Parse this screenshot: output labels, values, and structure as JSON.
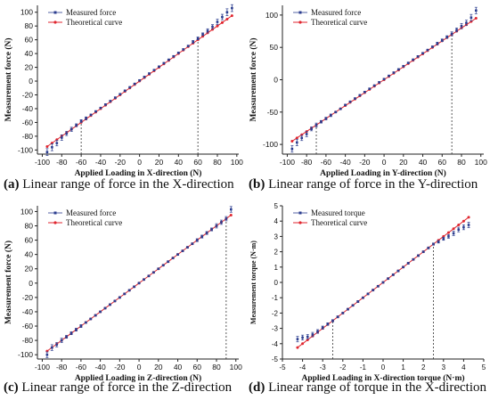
{
  "colors": {
    "measured": "#2b3d8f",
    "theory": "#e0262f",
    "axis": "#222222",
    "guide": "#333333"
  },
  "chart_data": [
    {
      "type": "scatter",
      "panel_label": "(a)",
      "caption": "Linear range of force in the X-direction",
      "xlabel": "Applied Loading in X-direction (N)",
      "ylabel": "Measurement force (N)",
      "xlim": [
        -105,
        102
      ],
      "ylim": [
        -106,
        110
      ],
      "xticks": [
        -100,
        -80,
        -60,
        -40,
        -20,
        0,
        20,
        40,
        60,
        80,
        100
      ],
      "yticks": [
        -100,
        -80,
        -60,
        -40,
        -20,
        0,
        20,
        40,
        60,
        80,
        100
      ],
      "legend_position": "top-left",
      "guides": [
        -60,
        60
      ],
      "series": [
        {
          "name": "Measured force",
          "marker": "square",
          "x": [
            -95,
            -90,
            -85,
            -80,
            -75,
            -70,
            -65,
            -60,
            -55,
            -50,
            -45,
            -40,
            -35,
            -30,
            -25,
            -20,
            -15,
            -10,
            -5,
            0,
            5,
            10,
            15,
            20,
            25,
            30,
            35,
            40,
            45,
            50,
            55,
            60,
            65,
            70,
            75,
            80,
            85,
            90,
            95
          ],
          "y": [
            -103,
            -96,
            -90,
            -82,
            -76,
            -70,
            -64,
            -58,
            -54,
            -49,
            -44,
            -39,
            -34,
            -29,
            -24,
            -19,
            -14,
            -9,
            -4,
            1,
            6,
            11,
            16,
            21,
            26,
            31,
            36,
            41,
            46,
            51,
            57,
            62,
            68,
            73,
            79,
            86,
            93,
            100,
            106
          ],
          "err": [
            5,
            5,
            4,
            4,
            3,
            3,
            2,
            2,
            2,
            1,
            1,
            1,
            1,
            1,
            1,
            1,
            1,
            1,
            1,
            1,
            1,
            1,
            1,
            1,
            1,
            1,
            1,
            1,
            1,
            1,
            2,
            2,
            2,
            3,
            3,
            4,
            4,
            5,
            5
          ]
        },
        {
          "name": "Theoretical curve",
          "marker": "circle",
          "x": [
            -95,
            -90,
            -85,
            -80,
            -75,
            -70,
            -65,
            -60,
            -55,
            -50,
            -45,
            -40,
            -35,
            -30,
            -25,
            -20,
            -15,
            -10,
            -5,
            0,
            5,
            10,
            15,
            20,
            25,
            30,
            35,
            40,
            45,
            50,
            55,
            60,
            65,
            70,
            75,
            80,
            85,
            90,
            95
          ],
          "y": [
            -95,
            -90,
            -85,
            -80,
            -75,
            -70,
            -65,
            -60,
            -55,
            -50,
            -45,
            -40,
            -35,
            -30,
            -25,
            -20,
            -15,
            -10,
            -5,
            0,
            5,
            10,
            15,
            20,
            25,
            30,
            35,
            40,
            45,
            50,
            55,
            60,
            65,
            70,
            75,
            80,
            85,
            90,
            95
          ]
        }
      ]
    },
    {
      "type": "scatter",
      "panel_label": "(b)",
      "caption": "Linear range of force in the Y-direction",
      "xlabel": "Applied Loading in Y-direction (N)",
      "ylabel": "Measurement force (N)",
      "xlim": [
        -105,
        103
      ],
      "ylim": [
        -115,
        115
      ],
      "xticks": [
        -100,
        -80,
        -60,
        -40,
        -20,
        0,
        20,
        40,
        60,
        80,
        100
      ],
      "yticks": [
        -100,
        -50,
        0,
        50,
        100
      ],
      "legend_position": "top-left",
      "guides": [
        -70,
        70
      ],
      "series": [
        {
          "name": "Measured force",
          "marker": "square",
          "x": [
            -95,
            -90,
            -85,
            -80,
            -75,
            -70,
            -65,
            -60,
            -55,
            -50,
            -45,
            -40,
            -35,
            -30,
            -25,
            -20,
            -15,
            -10,
            -5,
            0,
            5,
            10,
            15,
            20,
            25,
            30,
            35,
            40,
            45,
            50,
            55,
            60,
            65,
            70,
            75,
            80,
            85,
            90,
            95
          ],
          "y": [
            -107,
            -97,
            -90,
            -84,
            -76,
            -70,
            -65,
            -60,
            -55,
            -50,
            -45,
            -39,
            -34,
            -29,
            -24,
            -19,
            -14,
            -9,
            -4,
            1,
            6,
            11,
            16,
            21,
            26,
            31,
            36,
            41,
            46,
            51,
            56,
            61,
            66,
            71,
            77,
            83,
            88,
            96,
            107
          ],
          "err": [
            5,
            5,
            4,
            4,
            3,
            3,
            2,
            2,
            2,
            1,
            1,
            1,
            1,
            1,
            1,
            1,
            1,
            1,
            1,
            1,
            1,
            1,
            1,
            1,
            1,
            1,
            1,
            1,
            1,
            1,
            2,
            2,
            2,
            3,
            3,
            4,
            4,
            5,
            5
          ]
        },
        {
          "name": "Theoretical curve",
          "marker": "circle",
          "x": [
            -95,
            -90,
            -85,
            -80,
            -75,
            -70,
            -65,
            -60,
            -55,
            -50,
            -45,
            -40,
            -35,
            -30,
            -25,
            -20,
            -15,
            -10,
            -5,
            0,
            5,
            10,
            15,
            20,
            25,
            30,
            35,
            40,
            45,
            50,
            55,
            60,
            65,
            70,
            75,
            80,
            85,
            90,
            95
          ],
          "y": [
            -95,
            -90,
            -85,
            -80,
            -75,
            -70,
            -65,
            -60,
            -55,
            -50,
            -45,
            -40,
            -35,
            -30,
            -25,
            -20,
            -15,
            -10,
            -5,
            0,
            5,
            10,
            15,
            20,
            25,
            30,
            35,
            40,
            45,
            50,
            55,
            60,
            65,
            70,
            75,
            80,
            85,
            90,
            95
          ]
        }
      ]
    },
    {
      "type": "scatter",
      "panel_label": "(c)",
      "caption": "Linear range of force in the Z-direction",
      "xlabel": "Applied Loading in Z-direction (N)",
      "ylabel": "Measurement force (N)",
      "xlim": [
        -105,
        103
      ],
      "ylim": [
        -106,
        108
      ],
      "xticks": [
        -100,
        -80,
        -60,
        -40,
        -20,
        0,
        20,
        40,
        60,
        80,
        100
      ],
      "yticks": [
        -100,
        -80,
        -60,
        -40,
        -20,
        0,
        20,
        40,
        60,
        80,
        100
      ],
      "legend_position": "top-left",
      "guides": [
        90
      ],
      "series": [
        {
          "name": "Measured force",
          "marker": "square",
          "x": [
            -95,
            -90,
            -85,
            -80,
            -75,
            -70,
            -65,
            -60,
            -55,
            -50,
            -45,
            -40,
            -35,
            -30,
            -25,
            -20,
            -15,
            -10,
            -5,
            0,
            5,
            10,
            15,
            20,
            25,
            30,
            35,
            40,
            45,
            50,
            55,
            60,
            65,
            70,
            75,
            80,
            85,
            90,
            95
          ],
          "y": [
            -100,
            -90,
            -86,
            -80,
            -75,
            -70,
            -65,
            -60,
            -55,
            -50,
            -45,
            -40,
            -35,
            -30,
            -25,
            -20,
            -15,
            -10,
            -5,
            0,
            5,
            10,
            15,
            20,
            25,
            30,
            35,
            40,
            45,
            50,
            55,
            60,
            65,
            70,
            75,
            80,
            85,
            90,
            103
          ],
          "err": [
            4,
            4,
            3,
            3,
            2,
            2,
            2,
            2,
            1,
            1,
            1,
            1,
            1,
            1,
            1,
            1,
            1,
            1,
            1,
            1,
            1,
            1,
            1,
            1,
            1,
            1,
            1,
            1,
            1,
            1,
            1,
            2,
            2,
            2,
            2,
            3,
            3,
            3,
            4
          ]
        },
        {
          "name": "Theoretical curve",
          "marker": "circle",
          "x": [
            -95,
            -90,
            -85,
            -80,
            -75,
            -70,
            -65,
            -60,
            -55,
            -50,
            -45,
            -40,
            -35,
            -30,
            -25,
            -20,
            -15,
            -10,
            -5,
            0,
            5,
            10,
            15,
            20,
            25,
            30,
            35,
            40,
            45,
            50,
            55,
            60,
            65,
            70,
            75,
            80,
            85,
            90,
            95
          ],
          "y": [
            -95,
            -90,
            -85,
            -80,
            -75,
            -70,
            -65,
            -60,
            -55,
            -50,
            -45,
            -40,
            -35,
            -30,
            -25,
            -20,
            -15,
            -10,
            -5,
            0,
            5,
            10,
            15,
            20,
            25,
            30,
            35,
            40,
            45,
            50,
            55,
            60,
            65,
            70,
            75,
            80,
            85,
            90,
            95
          ]
        }
      ]
    },
    {
      "type": "scatter",
      "panel_label": "(d)",
      "caption": "Linear range of torque in the X-direction",
      "xlabel": "Applied Loading in X-direction torque (N·m)",
      "ylabel": "Measurement torque (N·m)",
      "xlim": [
        -5,
        5
      ],
      "ylim": [
        -5,
        5
      ],
      "xticks": [
        -5,
        -4,
        -3,
        -2,
        -1,
        0,
        1,
        2,
        3,
        4,
        5
      ],
      "yticks": [
        -5,
        -4,
        -3,
        -2,
        -1,
        0,
        1,
        2,
        3,
        4,
        5
      ],
      "legend_position": "top-left",
      "guides": [
        -2.5,
        2.5
      ],
      "series": [
        {
          "name": "Measured torque",
          "marker": "square",
          "x": [
            -4.25,
            -4.0,
            -3.75,
            -3.5,
            -3.25,
            -3.0,
            -2.75,
            -2.5,
            -2.25,
            -2.0,
            -1.75,
            -1.5,
            -1.25,
            -1.0,
            -0.75,
            -0.5,
            -0.25,
            0,
            0.25,
            0.5,
            0.75,
            1.0,
            1.25,
            1.5,
            1.75,
            2.0,
            2.25,
            2.5,
            2.75,
            3.0,
            3.25,
            3.5,
            3.75,
            4.0,
            4.25
          ],
          "y": [
            -3.7,
            -3.6,
            -3.55,
            -3.4,
            -3.2,
            -2.95,
            -2.72,
            -2.5,
            -2.25,
            -2.0,
            -1.75,
            -1.5,
            -1.25,
            -1.0,
            -0.75,
            -0.5,
            -0.25,
            0,
            0.25,
            0.5,
            0.75,
            1.0,
            1.25,
            1.5,
            1.75,
            2.0,
            2.25,
            2.5,
            2.65,
            2.85,
            3.0,
            3.2,
            3.45,
            3.6,
            3.75
          ],
          "err": [
            0.18,
            0.16,
            0.15,
            0.14,
            0.12,
            0.1,
            0.08,
            0.07,
            0.06,
            0.05,
            0.05,
            0.05,
            0.05,
            0.05,
            0.05,
            0.05,
            0.05,
            0.05,
            0.05,
            0.05,
            0.05,
            0.05,
            0.05,
            0.05,
            0.05,
            0.05,
            0.06,
            0.07,
            0.08,
            0.1,
            0.12,
            0.14,
            0.15,
            0.16,
            0.18
          ]
        },
        {
          "name": "Theoretical curve",
          "marker": "circle",
          "x": [
            -4.25,
            -4.0,
            -3.75,
            -3.5,
            -3.25,
            -3.0,
            -2.75,
            -2.5,
            -2.25,
            -2.0,
            -1.75,
            -1.5,
            -1.25,
            -1.0,
            -0.75,
            -0.5,
            -0.25,
            0,
            0.25,
            0.5,
            0.75,
            1.0,
            1.25,
            1.5,
            1.75,
            2.0,
            2.25,
            2.5,
            2.75,
            3.0,
            3.25,
            3.5,
            3.75,
            4.0,
            4.25
          ],
          "y": [
            -4.25,
            -4.0,
            -3.75,
            -3.5,
            -3.25,
            -3.0,
            -2.75,
            -2.5,
            -2.25,
            -2.0,
            -1.75,
            -1.5,
            -1.25,
            -1.0,
            -0.75,
            -0.5,
            -0.25,
            0,
            0.25,
            0.5,
            0.75,
            1.0,
            1.25,
            1.5,
            1.75,
            2.0,
            2.25,
            2.5,
            2.75,
            3.0,
            3.25,
            3.5,
            3.75,
            4.0,
            4.25
          ]
        }
      ]
    }
  ]
}
